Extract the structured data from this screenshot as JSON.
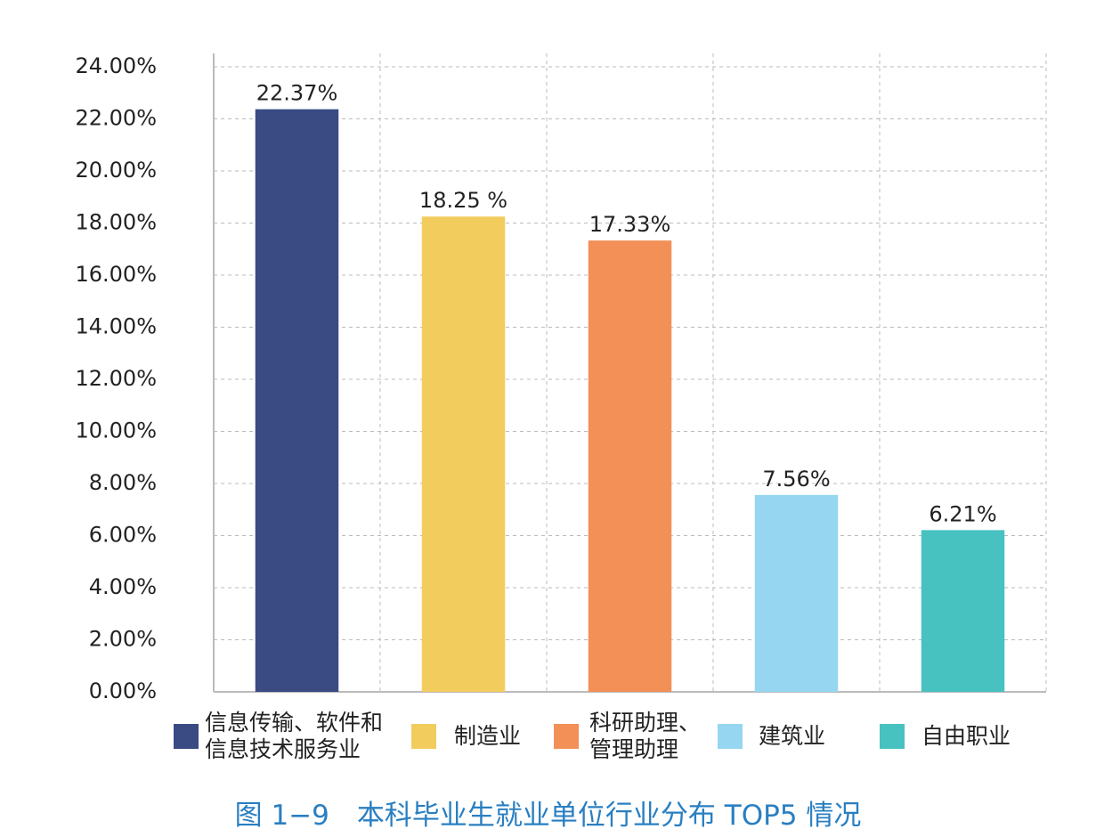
{
  "chart_data": {
    "type": "bar",
    "caption": "图 1−9　本科毕业生就业单位行业分布 TOP5 情况",
    "categories": [
      "信息传输、软件和信息技术服务业",
      "制造业",
      "科研助理、管理助理",
      "建筑业",
      "自由职业"
    ],
    "values": [
      22.37,
      18.25,
      17.33,
      7.56,
      6.21
    ],
    "value_labels": [
      "22.37%",
      "18.25 %",
      "17.33%",
      "7.56%",
      "6.21%"
    ],
    "colors": [
      "#3a4a82",
      "#f2cd5e",
      "#f39058",
      "#96d6f0",
      "#48c1c1"
    ],
    "ylim": [
      0,
      24
    ],
    "yticks": [
      {
        "value": 0,
        "label": "0.00%"
      },
      {
        "value": 2,
        "label": "2.00%"
      },
      {
        "value": 4,
        "label": "4.00%"
      },
      {
        "value": 6,
        "label": "6.00%"
      },
      {
        "value": 8,
        "label": "8.00%"
      },
      {
        "value": 10,
        "label": "10.00%"
      },
      {
        "value": 12,
        "label": "12.00%"
      },
      {
        "value": 14,
        "label": "14.00%"
      },
      {
        "value": 16,
        "label": "16.00%"
      },
      {
        "value": 18,
        "label": "18.00%"
      },
      {
        "value": 20,
        "label": "20.00%"
      },
      {
        "value": 22,
        "label": "22.00%"
      },
      {
        "value": 24,
        "label": "24.00%"
      }
    ],
    "grid": true
  }
}
